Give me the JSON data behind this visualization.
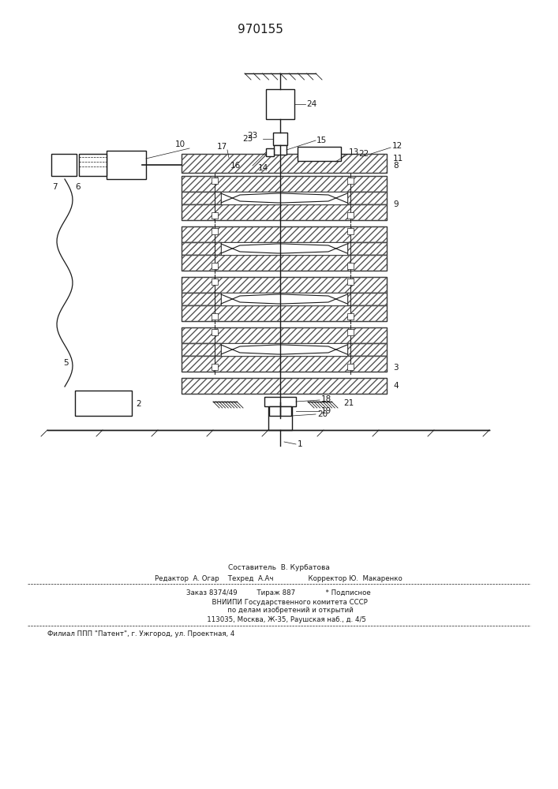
{
  "patent_number": "970155",
  "bg_color": "#ffffff",
  "line_color": "#1a1a1a",
  "footer": {
    "sestavitel": "Составитель  В. Курбатова",
    "line1": "Редактор  А. Огар    Техред  А.Ач                Корректор Ю.  Макаренко",
    "line2": "Заказ 8374/49         Тираж 887              * Подписное",
    "line3": "          ВНИИПИ Государственного комитета СССР",
    "line4": "           по делам изобретений и открытий",
    "line5": "       113035, Москва, Ж-35, Раушская наб., д. 4/5",
    "line6": "Филиал ППП \"Патент\", г. Ужгород, ул. Проектная, 4"
  },
  "fig_width": 7.07,
  "fig_height": 10.0,
  "dpi": 100
}
